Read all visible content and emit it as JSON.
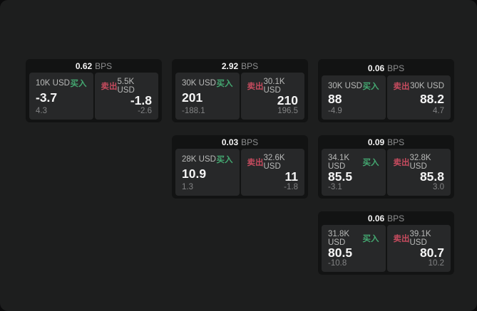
{
  "labels": {
    "bps_suffix": "BPS",
    "buy_label": "买入",
    "sell_label": "卖出"
  },
  "colors": {
    "buy_green": "#44a871",
    "sell_red": "#c54b5e",
    "window_bg": "#1d1e1e",
    "card_bg": "#121313",
    "panel_bg": "#272829"
  },
  "cards": [
    {
      "row": 1,
      "col": 1,
      "bps": "0.62",
      "buy": {
        "size": "10K USD",
        "price": "-3.7",
        "delta": "4.3"
      },
      "sell": {
        "size": "5.5K USD",
        "price": "-1.8",
        "delta": "-2.6"
      }
    },
    {
      "row": 1,
      "col": 2,
      "bps": "2.92",
      "buy": {
        "size": "30K USD",
        "price": "201",
        "delta": "-188.1"
      },
      "sell": {
        "size": "30.1K USD",
        "price": "210",
        "delta": "196.5"
      }
    },
    {
      "row": 1,
      "col": 3,
      "bps": "0.06",
      "buy": {
        "size": "30K USD",
        "price": "88",
        "delta": "-4.9"
      },
      "sell": {
        "size": "30K USD",
        "price": "88.2",
        "delta": "4.7"
      }
    },
    {
      "row": 2,
      "col": 2,
      "bps": "0.03",
      "buy": {
        "size": "28K USD",
        "price": "10.9",
        "delta": "1.3"
      },
      "sell": {
        "size": "32.6K USD",
        "price": "11",
        "delta": "-1.8"
      }
    },
    {
      "row": 2,
      "col": 3,
      "bps": "0.09",
      "buy": {
        "size": "34.1K USD",
        "price": "85.5",
        "delta": "-3.1"
      },
      "sell": {
        "size": "32.8K USD",
        "price": "85.8",
        "delta": "3.0"
      }
    },
    {
      "row": 3,
      "col": 3,
      "bps": "0.06",
      "buy": {
        "size": "31.8K USD",
        "price": "80.5",
        "delta": "-10.8"
      },
      "sell": {
        "size": "39.1K USD",
        "price": "80.7",
        "delta": "10.2"
      }
    }
  ]
}
